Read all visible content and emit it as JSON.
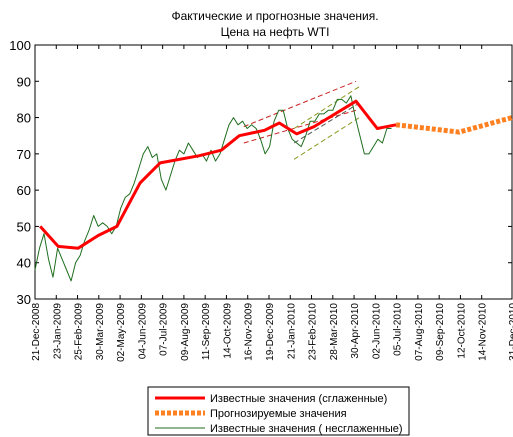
{
  "chart_data": {
    "type": "line",
    "title": [
      "Фактические и прогнозные значения.",
      "Цена на нефть WTI"
    ],
    "xlim": [
      "2008-12-21",
      "2010-12-31"
    ],
    "xticks": [
      {
        "value": "2008-12-21",
        "label": "21-Dec-2008"
      },
      {
        "value": "2009-01-23",
        "label": "23-Jan-2009"
      },
      {
        "value": "2009-02-25",
        "label": "25-Feb-2009"
      },
      {
        "value": "2009-03-30",
        "label": "30-Mar-2009"
      },
      {
        "value": "2009-05-02",
        "label": "02-May-2009"
      },
      {
        "value": "2009-06-04",
        "label": "04-Jun-2009"
      },
      {
        "value": "2009-07-07",
        "label": "07-Jul-2009"
      },
      {
        "value": "2009-08-09",
        "label": "09-Aug-2009"
      },
      {
        "value": "2009-09-11",
        "label": "11-Sep-2009"
      },
      {
        "value": "2009-10-14",
        "label": "14-Oct-2009"
      },
      {
        "value": "2009-11-16",
        "label": "16-Nov-2009"
      },
      {
        "value": "2009-12-19",
        "label": "19-Dec-2009"
      },
      {
        "value": "2010-01-21",
        "label": "21-Jan-2010"
      },
      {
        "value": "2010-02-23",
        "label": "23-Feb-2010"
      },
      {
        "value": "2010-03-28",
        "label": "28-Mar-2010"
      },
      {
        "value": "2010-04-30",
        "label": "30-Apr-2010"
      },
      {
        "value": "2010-06-02",
        "label": "02-Jun-2010"
      },
      {
        "value": "2010-07-05",
        "label": "05-Jul-2010"
      },
      {
        "value": "2010-08-07",
        "label": "07-Aug-2010"
      },
      {
        "value": "2010-09-09",
        "label": "09-Sep-2010"
      },
      {
        "value": "2010-10-12",
        "label": "12-Oct-2010"
      },
      {
        "value": "2010-11-14",
        "label": "14-Nov-2010"
      },
      {
        "value": "2010-12-31",
        "label": "31-Dec-2010"
      }
    ],
    "ylim": [
      30,
      100
    ],
    "yticks": [
      30,
      40,
      50,
      60,
      70,
      80,
      90,
      100
    ],
    "series": [
      {
        "name": "Известные значения (сглаженные)",
        "color": "#ff0000",
        "style": "solid",
        "width": 3,
        "x": [
          "2008-12-29",
          "2009-01-26",
          "2009-02-26",
          "2009-03-29",
          "2009-04-27",
          "2009-06-02",
          "2009-07-03",
          "2009-09-02",
          "2009-10-06",
          "2009-11-03",
          "2009-12-12",
          "2010-01-04",
          "2010-01-31",
          "2010-02-27",
          "2010-05-03",
          "2010-06-05",
          "2010-07-04"
        ],
        "values": [
          50,
          44.5,
          44,
          47.5,
          50,
          62,
          67.5,
          69.5,
          71,
          75,
          76.5,
          78.5,
          75.5,
          77.5,
          84.5,
          77,
          78
        ]
      },
      {
        "name": "Прогнозируемые значения",
        "color": "#ff8020",
        "style": "dashed",
        "width": 5,
        "x": [
          "2010-07-04",
          "2010-08-24",
          "2010-10-10",
          "2010-12-31"
        ],
        "values": [
          78,
          77,
          76,
          80
        ]
      },
      {
        "name": "Известные значения ( несглаженные)",
        "color": "#1f6e1f",
        "style": "solid",
        "width": 1,
        "x": [
          "2008-12-21",
          "2008-12-28",
          "2009-01-04",
          "2009-01-11",
          "2009-01-18",
          "2009-01-25",
          "2009-02-01",
          "2009-02-08",
          "2009-02-15",
          "2009-02-22",
          "2009-03-01",
          "2009-03-08",
          "2009-03-15",
          "2009-03-22",
          "2009-03-29",
          "2009-04-05",
          "2009-04-12",
          "2009-04-19",
          "2009-04-26",
          "2009-05-03",
          "2009-05-10",
          "2009-05-17",
          "2009-05-24",
          "2009-05-31",
          "2009-06-07",
          "2009-06-14",
          "2009-06-21",
          "2009-06-28",
          "2009-07-05",
          "2009-07-12",
          "2009-07-19",
          "2009-07-26",
          "2009-08-02",
          "2009-08-09",
          "2009-08-16",
          "2009-08-23",
          "2009-08-30",
          "2009-09-06",
          "2009-09-13",
          "2009-09-20",
          "2009-09-27",
          "2009-10-04",
          "2009-10-11",
          "2009-10-18",
          "2009-10-25",
          "2009-11-01",
          "2009-11-08",
          "2009-11-15",
          "2009-11-22",
          "2009-11-29",
          "2009-12-06",
          "2009-12-13",
          "2009-12-20",
          "2009-12-27",
          "2010-01-03",
          "2010-01-10",
          "2010-01-17",
          "2010-01-24",
          "2010-01-31",
          "2010-02-07",
          "2010-02-14",
          "2010-02-21",
          "2010-02-28",
          "2010-03-07",
          "2010-03-14",
          "2010-03-21",
          "2010-03-28",
          "2010-04-04",
          "2010-04-11",
          "2010-04-18",
          "2010-04-25",
          "2010-05-02",
          "2010-05-09",
          "2010-05-16",
          "2010-05-23",
          "2010-05-30",
          "2010-06-06",
          "2010-06-13",
          "2010-06-20",
          "2010-06-27"
        ],
        "values": [
          38,
          44,
          48,
          41,
          36,
          44,
          41,
          38,
          35,
          40,
          42,
          46,
          49,
          53,
          50,
          51,
          50,
          48,
          50,
          55,
          58,
          59,
          62,
          66,
          70,
          72,
          69,
          70,
          63,
          60,
          64,
          68,
          71,
          70,
          73,
          71,
          69,
          70,
          68,
          71,
          68,
          70,
          74,
          78,
          80,
          78,
          79,
          77,
          78,
          77,
          74,
          70,
          72,
          79,
          82,
          82,
          77,
          74,
          73,
          72,
          75,
          79,
          79,
          81,
          81,
          82,
          82,
          85,
          85,
          84,
          86,
          80,
          75,
          70,
          70,
          72,
          74,
          73,
          77,
          77
        ]
      }
    ],
    "trend_lines": [
      {
        "color": "#cc2222",
        "x": [
          "2009-11-10",
          "2010-05-03"
        ],
        "values": [
          77.5,
          90
        ]
      },
      {
        "color": "#cc2222",
        "x": [
          "2009-11-10",
          "2010-05-03"
        ],
        "values": [
          73,
          82
        ]
      },
      {
        "color": "#8a9a20",
        "x": [
          "2010-01-27",
          "2010-05-08"
        ],
        "values": [
          77,
          88.5
        ]
      },
      {
        "color": "#555555",
        "x": [
          "2010-01-27",
          "2010-05-08"
        ],
        "values": [
          73,
          84
        ]
      },
      {
        "color": "#8a9a20",
        "x": [
          "2010-01-27",
          "2010-05-08"
        ],
        "values": [
          68.5,
          80
        ]
      }
    ]
  }
}
